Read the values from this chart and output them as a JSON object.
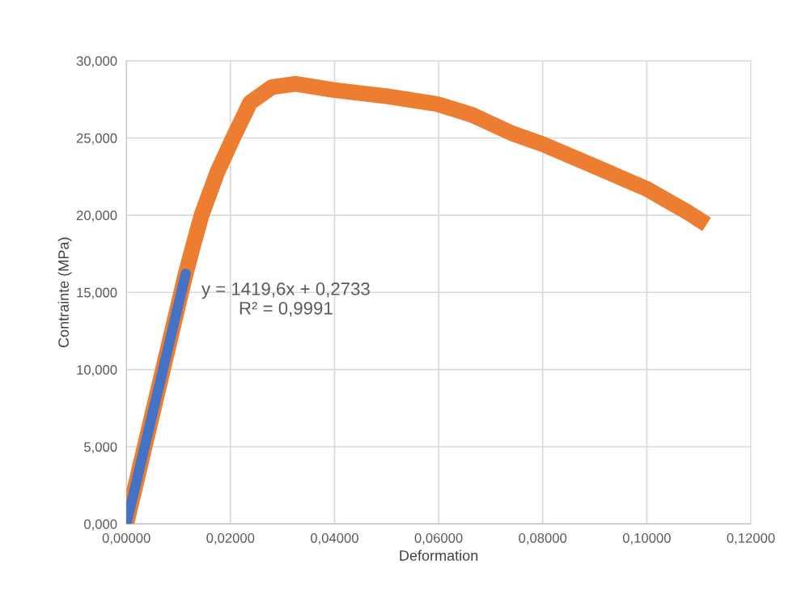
{
  "chart_data": {
    "type": "line",
    "xlabel": "Deformation",
    "ylabel": "Contrainte (MPa)",
    "xlim": [
      0,
      0.12
    ],
    "ylim": [
      0,
      30
    ],
    "xticks": [
      {
        "value": 0,
        "label": "0,00000"
      },
      {
        "value": 0.02,
        "label": "0,02000"
      },
      {
        "value": 0.04,
        "label": "0,04000"
      },
      {
        "value": 0.06,
        "label": "0,06000"
      },
      {
        "value": 0.08,
        "label": "0,08000"
      },
      {
        "value": 0.1,
        "label": "0,10000"
      },
      {
        "value": 0.12,
        "label": "0,12000"
      }
    ],
    "yticks": [
      {
        "value": 0,
        "label": "0,000"
      },
      {
        "value": 5,
        "label": "5,000"
      },
      {
        "value": 10,
        "label": "10,000"
      },
      {
        "value": 15,
        "label": "15,000"
      },
      {
        "value": 20,
        "label": "20,000"
      },
      {
        "value": 25,
        "label": "25,000"
      },
      {
        "value": 30,
        "label": "30,000"
      }
    ],
    "grid": true,
    "marker": "none",
    "line_style": "solid",
    "annotations": [
      {
        "text": "y = 1419,6x + 0,2733\nR² = 0,9991",
        "x": 0.0114,
        "y": 14.5
      }
    ],
    "series": [
      {
        "color": "#ed7d31",
        "x": [
          0,
          0.0057,
          0.0114,
          0.0125,
          0.01445,
          0.0175,
          0.0205,
          0.0238,
          0.028,
          0.0325,
          0.04,
          0.05,
          0.0597,
          0.0664,
          0.0741,
          0.08,
          0.0897,
          0.1,
          0.1078,
          0.1115
        ],
        "values": [
          0,
          8.1,
          16.2,
          17.6,
          20.0,
          22.8,
          25.0,
          27.3,
          28.3,
          28.5,
          28.1,
          27.7,
          27.2,
          26.5,
          25.3,
          24.6,
          23.2,
          21.7,
          20.2,
          19.4
        ]
      },
      {
        "color": "#4472c4",
        "x": [
          0,
          0.0057,
          0.0114
        ],
        "values": [
          0,
          8.1,
          16.2
        ]
      }
    ]
  }
}
